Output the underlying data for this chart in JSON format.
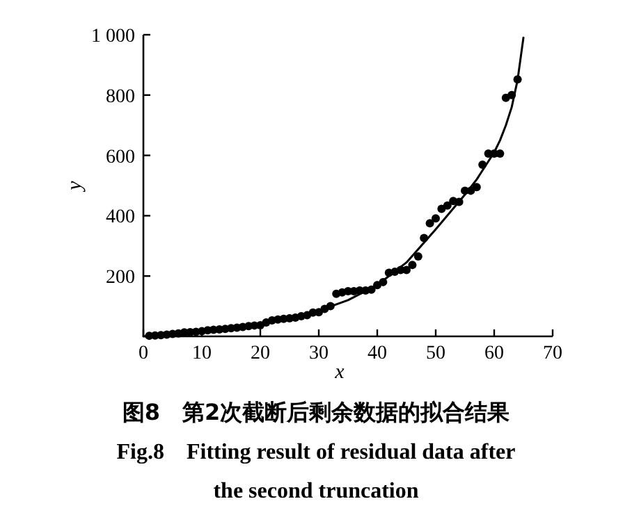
{
  "chart_data": {
    "type": "scatter",
    "title": "图8　第2次截断后剩余数据的拟合结果",
    "subtitle": "Fig.8　Fitting result of residual data after the second truncation",
    "xlabel": "x",
    "ylabel": "y",
    "xlim": [
      0,
      70
    ],
    "ylim": [
      0,
      1000
    ],
    "xticks": [
      0,
      10,
      20,
      30,
      40,
      50,
      60,
      70
    ],
    "yticks": [
      200,
      400,
      600,
      800,
      {
        "value": 1000,
        "label": "1 000"
      }
    ],
    "grid": false,
    "series": [
      {
        "marker": "circle",
        "color": "#000000",
        "x": [
          1,
          2,
          3,
          4,
          5,
          6,
          7,
          8,
          9,
          10,
          11,
          12,
          13,
          14,
          15,
          16,
          17,
          18,
          19,
          20,
          21,
          22,
          23,
          24,
          25,
          26,
          27,
          28,
          29,
          30,
          31,
          32,
          33,
          34,
          35,
          36,
          37,
          38,
          39,
          40,
          41,
          42,
          43,
          44,
          45,
          46,
          47,
          48,
          49,
          50,
          51,
          52,
          53,
          54,
          55,
          56,
          57,
          58,
          59,
          60,
          61,
          62,
          63,
          64
        ],
        "values": [
          2,
          3,
          4,
          6,
          8,
          10,
          13,
          14,
          15,
          17,
          20,
          22,
          23,
          25,
          27,
          29,
          31,
          34,
          36,
          37,
          46,
          53,
          56,
          58,
          60,
          62,
          67,
          70,
          79,
          80,
          91,
          100,
          141,
          146,
          150,
          150,
          152,
          152,
          155,
          170,
          180,
          211,
          214,
          220,
          220,
          237,
          265,
          326,
          375,
          391,
          423,
          434,
          449,
          446,
          483,
          483,
          495,
          569,
          606,
          606,
          606,
          791,
          800,
          852
        ]
      },
      {
        "type": "line",
        "marker": "none",
        "line_style": "solid",
        "color": "#000000",
        "x": [
          0,
          5,
          10,
          15,
          20,
          25,
          30,
          35,
          40,
          45,
          50,
          55,
          57,
          58,
          60,
          61,
          62,
          63,
          64,
          65
        ],
        "values": [
          0,
          10,
          20,
          30,
          40,
          60,
          85,
          120,
          170,
          245,
          355,
          470,
          520,
          550,
          610,
          650,
          700,
          760,
          850,
          990
        ]
      }
    ]
  }
}
